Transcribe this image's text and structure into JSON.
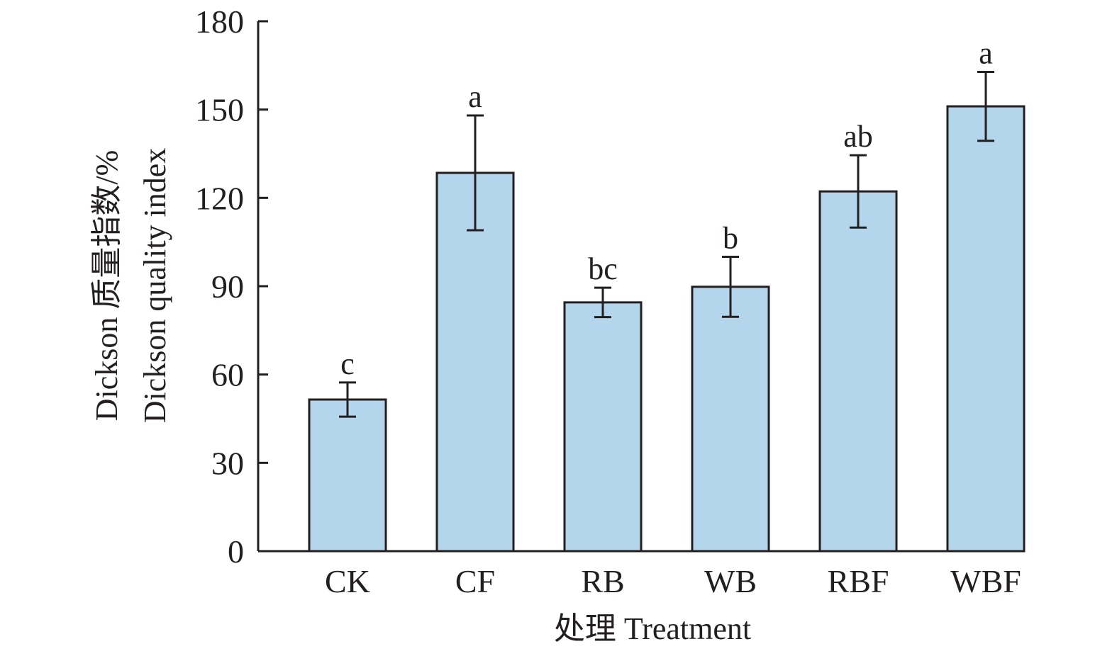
{
  "chart_data": {
    "type": "bar",
    "title": "",
    "xlabel": "处理 Treatment",
    "ylabel_cn": "Dickson 质量指数/%",
    "ylabel_en": "Dickson quality index",
    "ylim": [
      0,
      180
    ],
    "yticks": [
      0,
      30,
      60,
      90,
      120,
      150,
      180
    ],
    "ytick_labels": [
      "0",
      "30",
      "60",
      "90",
      "120",
      "150",
      "180"
    ],
    "categories": [
      "CK",
      "CF",
      "RB",
      "WB",
      "RBF",
      "WBF"
    ],
    "values": [
      51.5,
      128.5,
      84.5,
      89.8,
      122.2,
      151.1
    ],
    "error": [
      5.8,
      19.5,
      5.0,
      10.2,
      12.3,
      11.7
    ],
    "significance": [
      "c",
      "a",
      "bc",
      "b",
      "ab",
      "a"
    ],
    "grid": false,
    "bar_color": "#b3d6ec",
    "edge_color": "#231f20"
  }
}
